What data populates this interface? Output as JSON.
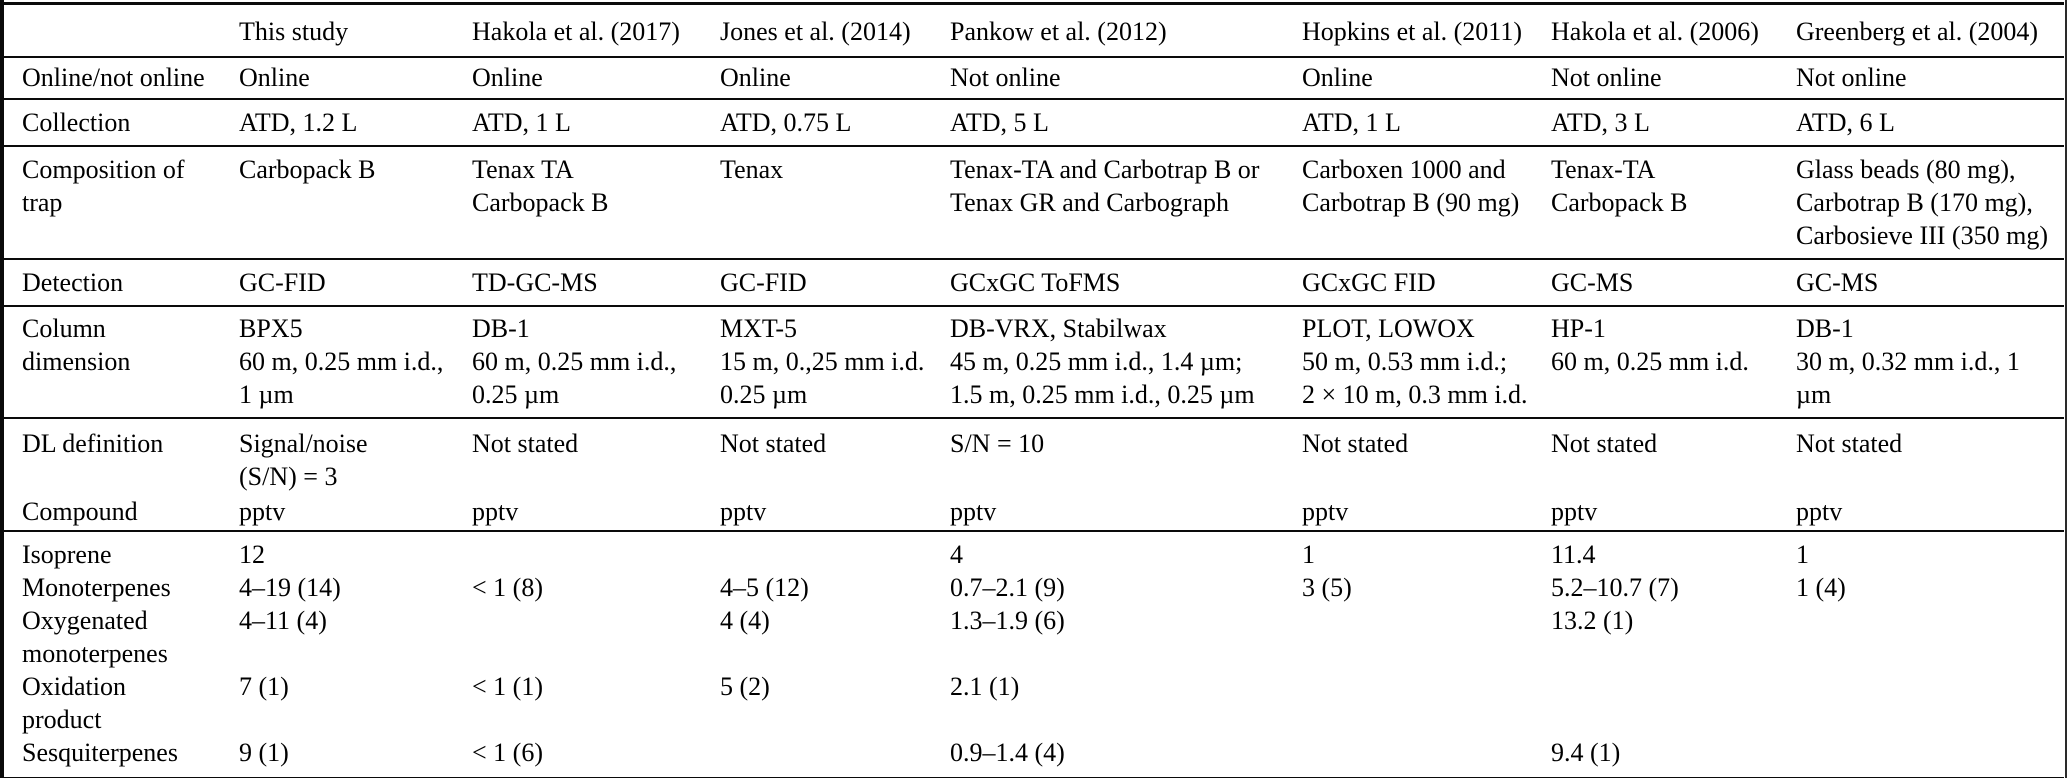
{
  "table": {
    "header": [
      "",
      "This study",
      "Hakola et al. (2017)",
      "Jones et al. (2014)",
      "Pankow et al. (2012)",
      "Hopkins et al. (2011)",
      "Hakola et al. (2006)",
      "Greenberg et al. (2004)"
    ],
    "rows": [
      {
        "label": "Online/not online",
        "cells": [
          "Online",
          "Online",
          "Online",
          "Not online",
          "Online",
          "Not online",
          "Not online"
        ]
      },
      {
        "label": "Collection",
        "cells": [
          "ATD, 1.2 L",
          "ATD, 1 L",
          "ATD, 0.75 L",
          "ATD, 5 L",
          "ATD, 1 L",
          "ATD, 3 L",
          "ATD, 6 L"
        ]
      },
      {
        "label": "Composition of\ntrap",
        "cells": [
          "Carbopack B",
          "Tenax TA\nCarbopack B",
          "Tenax",
          "Tenax-TA and Carbotrap B or\nTenax GR and Carbograph",
          "Carboxen 1000 and\nCarbotrap B (90 mg)",
          "Tenax-TA\nCarbopack B",
          "Glass beads (80 mg),\nCarbotrap B (170 mg),\nCarbosieve III (350 mg)"
        ]
      },
      {
        "label": "Detection",
        "cells": [
          "GC-FID",
          "TD-GC-MS",
          "GC-FID",
          "GCxGC ToFMS",
          "GCxGC FID",
          "GC-MS",
          "GC-MS"
        ]
      },
      {
        "label": "Column\ndimension",
        "cells": [
          "BPX5\n60 m, 0.25 mm i.d.,\n1 µm",
          "DB-1\n60 m, 0.25 mm i.d.,\n0.25 µm",
          "MXT-5\n15 m, 0.,25 mm i.d.\n0.25 µm",
          "DB-VRX, Stabilwax\n45 m, 0.25 mm i.d., 1.4 µm;\n1.5 m, 0.25 mm i.d., 0.25 µm",
          "PLOT, LOWOX\n50 m, 0.53 mm i.d.;\n2 × 10 m, 0.3 mm i.d.",
          "HP-1\n60 m, 0.25 mm i.d.",
          "DB-1\n30 m, 0.32 mm i.d., 1 µm"
        ]
      },
      {
        "label": "DL definition",
        "cells": [
          "Signal/noise\n(S/N) = 3",
          "Not stated",
          "Not stated",
          "S/N = 10",
          "Not stated",
          "Not stated",
          "Not stated"
        ]
      },
      {
        "label": "Compound",
        "cells": [
          "pptv",
          "pptv",
          "pptv",
          "pptv",
          "pptv",
          "pptv",
          "pptv"
        ]
      },
      {
        "label": "Isoprene",
        "cells": [
          "12",
          "",
          "",
          "4",
          "1",
          "11.4",
          "1"
        ]
      },
      {
        "label": "Monoterpenes",
        "cells": [
          "4–19 (14)",
          "< 1 (8)",
          "4–5 (12)",
          "0.7–2.1 (9)",
          "3 (5)",
          "5.2–10.7 (7)",
          "1 (4)"
        ]
      },
      {
        "label": "Oxygenated\nmonoterpenes",
        "cells": [
          "4–11 (4)",
          "",
          "4 (4)",
          "1.3–1.9 (6)",
          "",
          "13.2 (1)",
          ""
        ]
      },
      {
        "label": "Oxidation\nproduct",
        "cells": [
          "7 (1)",
          "< 1 (1)",
          "5 (2)",
          "2.1 (1)",
          "",
          "",
          ""
        ]
      },
      {
        "label": "Sesquiterpenes",
        "cells": [
          "9 (1)",
          "< 1 (6)",
          "",
          "0.9–1.4 (4)",
          "",
          "9.4 (1)",
          ""
        ]
      }
    ]
  }
}
